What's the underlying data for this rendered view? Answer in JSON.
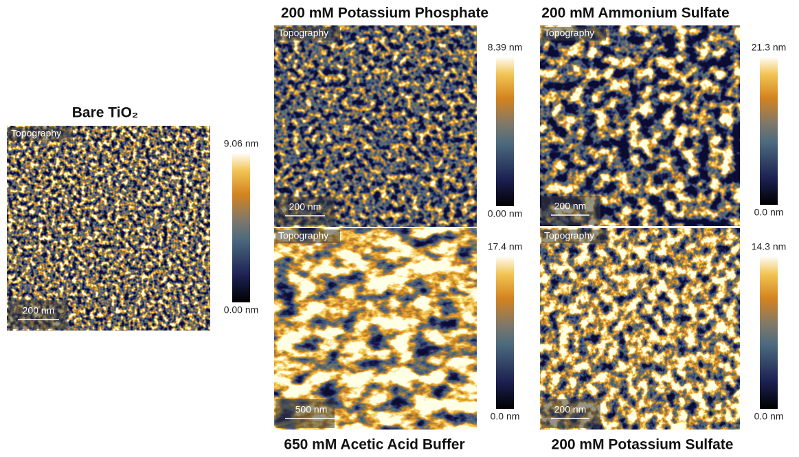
{
  "panels": [
    {
      "title": "Bare TiO₂",
      "image_label": "Topography",
      "scale_bar": "200 nm",
      "colorbar_max": "9.06 nm",
      "colorbar_min": "0.00 nm"
    },
    {
      "title": "200 mM Potassium Phosphate",
      "image_label": "Topography",
      "scale_bar": "200 nm",
      "colorbar_max": "8.39 nm",
      "colorbar_min": "0.00 nm"
    },
    {
      "title": "200 mM Ammonium Sulfate",
      "image_label": "Topography",
      "scale_bar": "200 nm",
      "colorbar_max": "21.3 nm",
      "colorbar_min": "0.0 nm"
    },
    {
      "title": "650 mM Acetic Acid Buffer",
      "image_label": "Topography",
      "scale_bar": "500 nm",
      "colorbar_max": "17.4 nm",
      "colorbar_min": "0.0 nm"
    },
    {
      "title": "200 mM Potassium Sulfate",
      "image_label": "Topography",
      "scale_bar": "200 nm",
      "colorbar_max": "14.3 nm",
      "colorbar_min": "0.0 nm"
    }
  ]
}
